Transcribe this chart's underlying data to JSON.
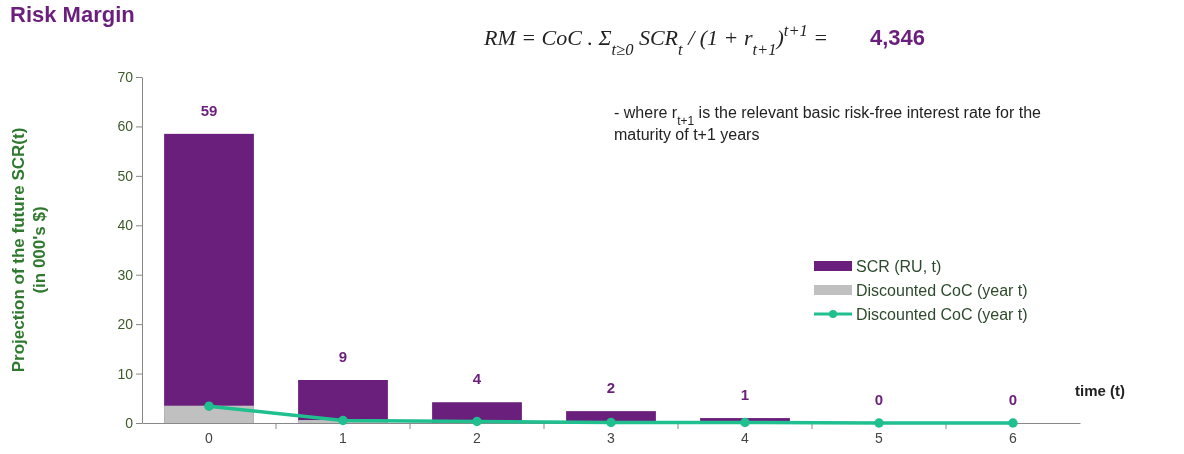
{
  "chart_data": {
    "type": "bar",
    "title": "Risk Margin",
    "ylabel": "Projection of the future SCR(t)\n(in 000's $)",
    "xlabel": "time (t)",
    "annotations": [
      "RM = CoC . Σ$_{t≥0}$ SCR$_{t}$ / (1 + r$_{t+1}$)$^{t+1}$ =",
      "4,346",
      "- where r$_{t+1}$ is the relevant basic risk-free interest rate for the\nmaturity of t+1 years"
    ],
    "categories": [
      "0",
      "1",
      "2",
      "3",
      "4",
      "5",
      "6"
    ],
    "series": [
      {
        "name": "SCR (RU, t)",
        "color": "#6b1f7c",
        "values": [
          58.5,
          8.7,
          4.2,
          2.4,
          1.0,
          0,
          0
        ],
        "value_labels": [
          "59",
          "9",
          "4",
          "2",
          "1",
          "0",
          "0"
        ]
      },
      {
        "name": "Discounted CoC (year t)",
        "color": "#c0c0c0",
        "values": [
          3.5,
          0.6,
          null,
          null,
          null,
          0,
          0
        ]
      },
      {
        "name": "Discounted CoC (year t)",
        "type": "line",
        "color": "#1fbf8f",
        "values": [
          3.4,
          0.5,
          0.3,
          0.1,
          0.1,
          0,
          0
        ]
      }
    ],
    "ylim": [
      0,
      70
    ],
    "yticks": [
      0,
      10,
      20,
      30,
      40,
      50,
      60,
      70
    ],
    "grid": false,
    "legend": "right",
    "marker": "circle",
    "line_style": "solid"
  }
}
